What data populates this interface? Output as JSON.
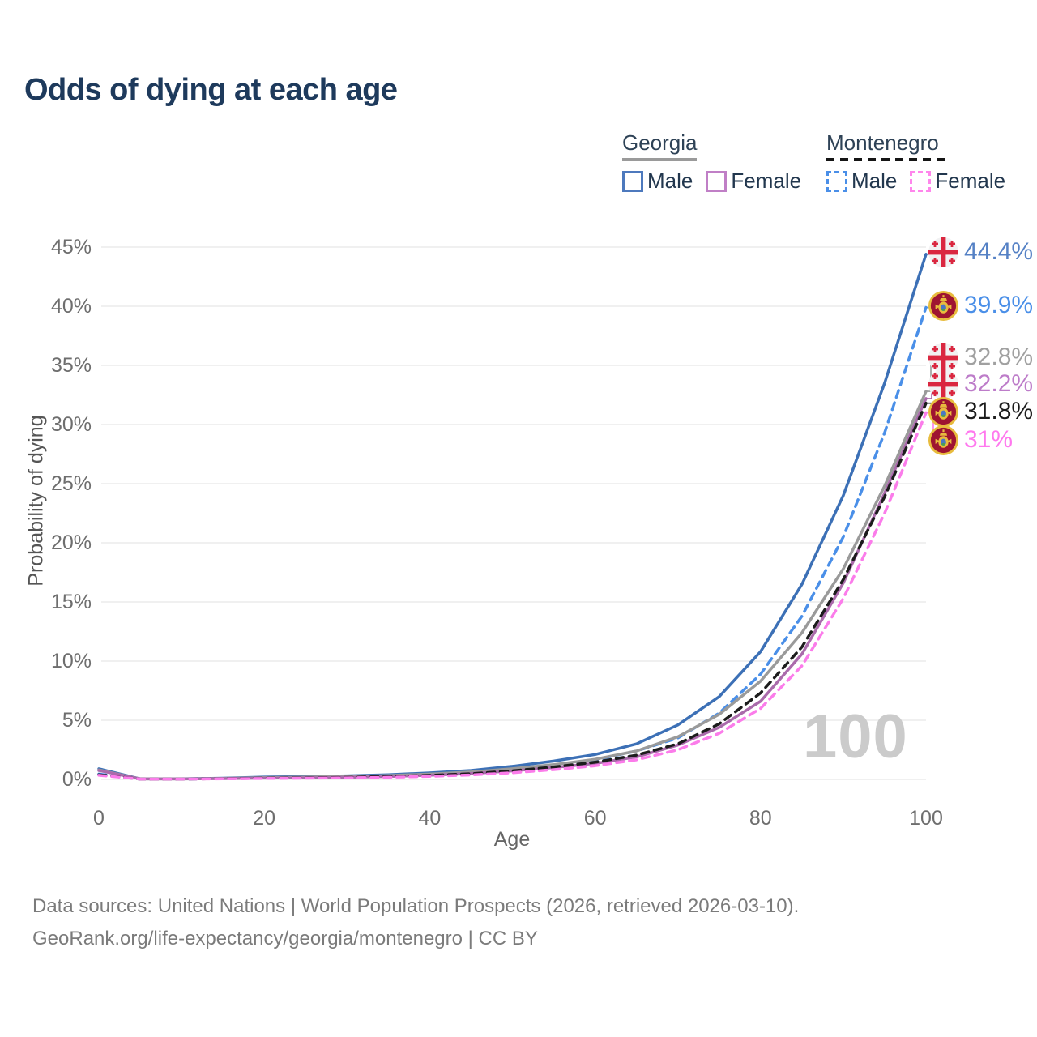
{
  "title": "Odds of dying at each age",
  "watermark": "100",
  "legend": {
    "groups": [
      {
        "label": "Georgia",
        "line_style": "solid",
        "items": [
          {
            "label": "Male",
            "color": "#4d79bd",
            "dashed": false
          },
          {
            "label": "Female",
            "color": "#c07fc6",
            "dashed": false
          }
        ]
      },
      {
        "label": "Montenegro",
        "line_style": "dashed",
        "items": [
          {
            "label": "Male",
            "color": "#4a8fe8",
            "dashed": true
          },
          {
            "label": "Female",
            "color": "#ff86ec",
            "dashed": true
          }
        ]
      }
    ]
  },
  "footer": {
    "line1": "Data sources: United Nations | World Population Prospects (2026, retrieved 2026-03-10).",
    "line2": "GeoRank.org/life-expectancy/georgia/montenegro | CC BY"
  },
  "chart_data": {
    "type": "line",
    "title": "Odds of dying at each age",
    "xlabel": "Age",
    "ylabel": "Probability of dying",
    "xlim": [
      0,
      100
    ],
    "ylim": [
      0,
      45
    ],
    "grid": "horizontal-only",
    "legend_position": "top-right",
    "x_ticks": [
      0,
      20,
      40,
      60,
      80,
      100
    ],
    "y_ticks": [
      "0%",
      "5%",
      "10%",
      "15%",
      "20%",
      "25%",
      "30%",
      "35%",
      "40%",
      "45%"
    ],
    "x": [
      0,
      5,
      10,
      15,
      20,
      25,
      30,
      35,
      40,
      45,
      50,
      55,
      60,
      65,
      70,
      75,
      80,
      85,
      90,
      95,
      100
    ],
    "series": [
      {
        "name": "Georgia Male",
        "color": "#3c70b6",
        "dash": "solid",
        "flag": "georgia-flag",
        "end_label": "44.4%",
        "label_color": "#5581c5",
        "values": [
          0.9,
          0.05,
          0.05,
          0.1,
          0.2,
          0.25,
          0.3,
          0.4,
          0.55,
          0.75,
          1.1,
          1.55,
          2.1,
          3.0,
          4.6,
          7.0,
          10.8,
          16.5,
          24.0,
          33.5,
          44.4
        ]
      },
      {
        "name": "Montenegro Male",
        "color": "#4a8fe8",
        "dash": "dashed",
        "flag": "montenegro-flag",
        "end_label": "39.9%",
        "label_color": "#4a8fe8",
        "values": [
          0.45,
          0.03,
          0.03,
          0.07,
          0.12,
          0.16,
          0.2,
          0.28,
          0.4,
          0.55,
          0.85,
          1.2,
          1.65,
          2.4,
          3.5,
          5.6,
          8.9,
          13.8,
          20.5,
          29.3,
          39.9
        ]
      },
      {
        "name": "Georgia (both sexes)",
        "color": "#9a9a9a",
        "dash": "solid",
        "flag": "georgia-flag",
        "end_label": "32.8%",
        "label_color": "#a0a0a0",
        "values": [
          0.8,
          0.04,
          0.04,
          0.09,
          0.16,
          0.2,
          0.25,
          0.33,
          0.45,
          0.62,
          0.9,
          1.25,
          1.7,
          2.4,
          3.6,
          5.5,
          8.3,
          12.4,
          17.8,
          24.8,
          32.8
        ]
      },
      {
        "name": "Georgia Female",
        "color": "#aa6bab",
        "dash": "solid",
        "flag": "georgia-flag",
        "end_label": "32.2%",
        "label_color": "#bd7cc9",
        "values": [
          0.75,
          0.04,
          0.04,
          0.07,
          0.11,
          0.14,
          0.18,
          0.25,
          0.35,
          0.5,
          0.72,
          1.0,
          1.35,
          1.9,
          2.9,
          4.4,
          6.6,
          10.6,
          16.6,
          24.2,
          32.2
        ]
      },
      {
        "name": "Montenegro (both sexes)",
        "color": "#1c1c1c",
        "dash": "dashed",
        "flag": "montenegro-flag",
        "end_label": "31.8%",
        "label_color": "#1c1c1c",
        "values": [
          0.4,
          0.03,
          0.03,
          0.06,
          0.1,
          0.13,
          0.17,
          0.24,
          0.34,
          0.48,
          0.72,
          1.05,
          1.45,
          2.05,
          3.0,
          4.7,
          7.3,
          11.2,
          16.9,
          23.9,
          31.8
        ]
      },
      {
        "name": "Montenegro Female",
        "color": "#fb7cea",
        "dash": "dashed",
        "flag": "montenegro-flag",
        "end_label": "31%",
        "label_color": "#ff78ee",
        "values": [
          0.35,
          0.03,
          0.03,
          0.05,
          0.08,
          0.1,
          0.13,
          0.18,
          0.26,
          0.38,
          0.56,
          0.82,
          1.15,
          1.65,
          2.5,
          3.9,
          6.0,
          9.6,
          15.3,
          22.5,
          31.0
        ]
      }
    ]
  }
}
